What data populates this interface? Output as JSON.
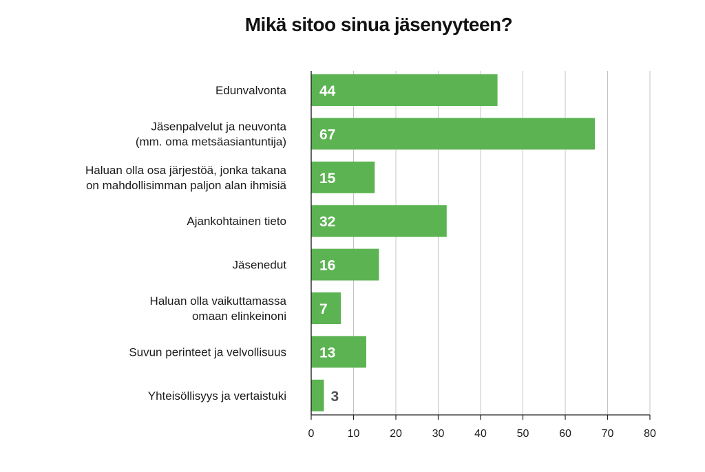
{
  "chart_data": {
    "type": "bar",
    "orientation": "horizontal",
    "title": "Mikä sitoo sinua jäsenyyteen?",
    "categories": [
      [
        "Edunvalvonta"
      ],
      [
        "Jäsenpalvelut ja neuvonta",
        "(mm. oma metsäasiantuntija)"
      ],
      [
        "Haluan olla osa järjestöä, jonka takana",
        "on mahdollisimman paljon alan ihmisiä"
      ],
      [
        "Ajankohtainen tieto"
      ],
      [
        "Jäsenedut"
      ],
      [
        "Haluan olla vaikuttamassa",
        "omaan elinkeinoni"
      ],
      [
        "Suvun perinteet ja velvollisuus"
      ],
      [
        "Yhteisöllisyys ja vertaistuki"
      ]
    ],
    "values": [
      44,
      67,
      15,
      32,
      16,
      7,
      13,
      3
    ],
    "xlim": [
      0,
      80
    ],
    "xticks": [
      0,
      10,
      20,
      30,
      40,
      50,
      60,
      70,
      80
    ],
    "grid": "vertical",
    "bar_color": "#5cb352",
    "value_label_inside_color": "#ffffff",
    "value_label_outside_color": "#555555"
  }
}
